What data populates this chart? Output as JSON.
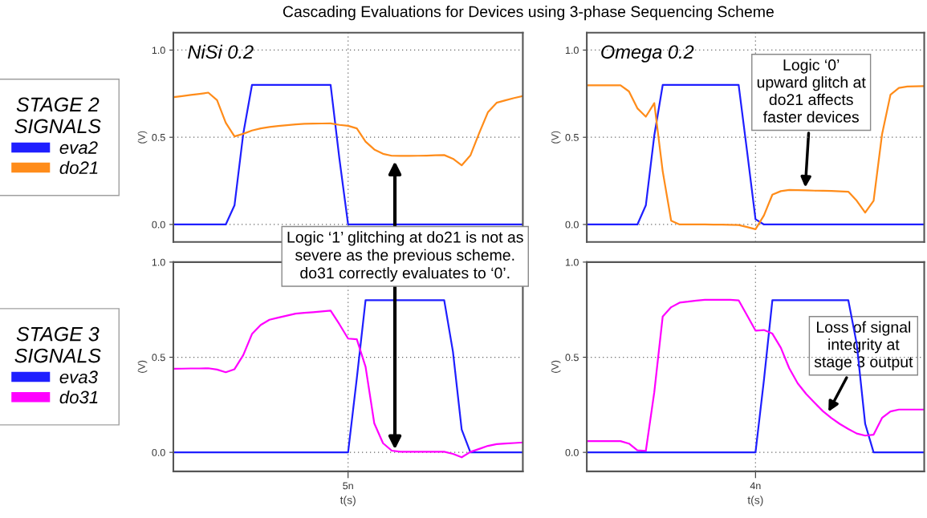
{
  "chart_data": [
    {
      "type": "line",
      "title": "Cascading Evaluations for Devices using 3-phase Sequencing Scheme",
      "ylabel": "(V)",
      "legend_title": "STAGE 2\nSIGNALS",
      "legend": "left",
      "grid": "y",
      "tick_labels": "y",
      "categories": [
        null,
        null,
        null,
        null,
        null,
        null,
        null,
        null,
        null,
        null,
        null,
        null,
        null,
        null,
        null,
        null,
        null,
        null,
        null,
        null,
        null,
        null,
        null,
        null,
        null,
        null,
        null,
        null,
        null,
        null,
        null,
        null,
        null,
        null,
        null,
        null,
        null,
        null,
        null,
        null,
        null
      ],
      "ylim": [
        -0.1,
        1.1
      ],
      "yticks": [
        {
          "value": 0,
          "label": "0.0"
        },
        {
          "value": 0.5,
          "label": "0.5"
        },
        {
          "value": 1,
          "label": "1.0"
        }
      ],
      "annotations": [
        "NiSi 0.2",
        "Logic ‘1’ glitching at do21 is not as\nsevere as the previous scheme.\ndo31 correctly evaluates to ‘0’."
      ],
      "series": [
        {
          "name": "eva2",
          "color": "#1f1fff",
          "values": [
            0,
            0,
            0,
            0,
            0,
            0,
            0,
            0.11,
            0.52,
            0.8,
            0.8,
            0.8,
            0.8,
            0.8,
            0.8,
            0.8,
            0.8,
            0.8,
            0.8,
            0.38,
            0,
            0,
            0,
            0,
            0,
            0,
            0,
            0,
            0,
            0,
            0,
            0,
            0,
            0,
            0,
            0,
            0,
            0,
            0,
            0,
            0
          ]
        },
        {
          "name": "do21",
          "color": "#ff8c1a",
          "values": [
            0.73,
            0.736,
            0.743,
            0.749,
            0.756,
            0.713,
            0.583,
            0.505,
            0.52,
            0.539,
            0.551,
            0.559,
            0.565,
            0.569,
            0.574,
            0.577,
            0.578,
            0.579,
            0.58,
            0.571,
            0.566,
            0.551,
            0.475,
            0.43,
            0.405,
            0.394,
            0.393,
            0.393,
            0.394,
            0.395,
            0.397,
            0.398,
            0.377,
            0.339,
            0.396,
            0.523,
            0.643,
            0.698,
            0.712,
            0.725,
            0.736
          ]
        }
      ]
    },
    {
      "type": "line",
      "ylabel": "(V)",
      "xlabel": "t(s)",
      "legend_title": "STAGE 3\nSIGNALS",
      "legend": "left",
      "grid": "y",
      "categories": [
        null,
        null,
        null,
        null,
        null,
        null,
        null,
        null,
        null,
        null,
        null,
        null,
        null,
        null,
        null,
        null,
        null,
        null,
        null,
        null,
        "5n",
        null,
        null,
        null,
        null,
        null,
        null,
        null,
        null,
        null,
        null,
        null,
        null,
        null,
        null,
        null,
        null,
        null,
        null,
        null,
        null
      ],
      "ylim": [
        -0.1,
        1.0
      ],
      "yticks": [
        {
          "value": 0,
          "label": "0.0"
        },
        {
          "value": 0.5,
          "label": "0.5"
        },
        {
          "value": 1,
          "label": "1.0"
        }
      ],
      "series": [
        {
          "name": "eva3",
          "color": "#1f1fff",
          "values": [
            0,
            0,
            0,
            0,
            0,
            0,
            0,
            0,
            0,
            0,
            0,
            0,
            0,
            0,
            0,
            0,
            0,
            0,
            0,
            0,
            0,
            0.39,
            0.8,
            0.8,
            0.8,
            0.8,
            0.8,
            0.8,
            0.8,
            0.8,
            0.8,
            0.8,
            0.53,
            0.12,
            0,
            0,
            0,
            0,
            0,
            0,
            0
          ]
        },
        {
          "name": "do31",
          "color": "#ff00ff",
          "values": [
            0.439,
            0.44,
            0.441,
            0.441,
            0.442,
            0.435,
            0.421,
            0.437,
            0.511,
            0.622,
            0.67,
            0.697,
            0.708,
            0.719,
            0.729,
            0.733,
            0.737,
            0.741,
            0.745,
            0.674,
            0.598,
            0.594,
            0.45,
            0.152,
            0.048,
            0.009,
            0.003,
            0.003,
            0.003,
            0.003,
            0.003,
            0.003,
            -0.008,
            -0.026,
            0.002,
            0.018,
            0.034,
            0.043,
            0.046,
            0.049,
            0.052
          ]
        }
      ]
    },
    {
      "type": "line",
      "ylabel": "(V)",
      "grid": "y",
      "tick_labels": "y",
      "categories": [
        null,
        null,
        null,
        null,
        null,
        null,
        null,
        null,
        null,
        null,
        null,
        null,
        null,
        null,
        null,
        null,
        null,
        null,
        null,
        null,
        null,
        null,
        null,
        null,
        null,
        null,
        null,
        null,
        null,
        null,
        null,
        null,
        null,
        null,
        null,
        null,
        null,
        null,
        null,
        null,
        null
      ],
      "ylim": [
        -0.1,
        1.1
      ],
      "yticks": [
        {
          "value": 0,
          "label": "0.0"
        },
        {
          "value": 0.5,
          "label": "0.5"
        },
        {
          "value": 1,
          "label": "1.0"
        }
      ],
      "annotations": [
        "Omega 0.2",
        "Logic ‘0’\nupward glitch at\ndo21 affects\nfaster devices"
      ],
      "series": [
        {
          "color": "#1f1fff",
          "values": [
            0,
            0,
            0,
            0,
            0,
            0,
            0,
            0.11,
            0.51,
            0.8,
            0.8,
            0.8,
            0.8,
            0.8,
            0.8,
            0.8,
            0.8,
            0.8,
            0.8,
            0.42,
            0.03,
            0,
            0,
            0,
            0,
            0,
            0,
            0,
            0,
            0,
            0,
            0,
            0,
            0,
            0,
            0,
            0,
            0,
            0,
            0,
            0
          ]
        },
        {
          "color": "#ff8c1a",
          "values": [
            0.798,
            0.798,
            0.798,
            0.798,
            0.798,
            0.763,
            0.666,
            0.618,
            0.696,
            0.305,
            0.022,
            0,
            0,
            0,
            0,
            -0.001,
            -0.001,
            -0.002,
            -0.003,
            -0.015,
            -0.027,
            0.052,
            0.171,
            0.191,
            0.198,
            0.197,
            0.196,
            0.194,
            0.193,
            0.192,
            0.19,
            0.188,
            0.136,
            0.068,
            0.136,
            0.517,
            0.744,
            0.783,
            0.791,
            0.792,
            0.793
          ]
        }
      ]
    },
    {
      "type": "line",
      "ylabel": "(V)",
      "xlabel": "t(s)",
      "grid": "y",
      "categories": [
        null,
        null,
        null,
        null,
        null,
        null,
        null,
        null,
        null,
        null,
        null,
        null,
        null,
        null,
        null,
        null,
        null,
        null,
        null,
        null,
        "4n",
        null,
        null,
        null,
        null,
        null,
        null,
        null,
        null,
        null,
        null,
        null,
        null,
        null,
        null,
        null,
        null,
        null,
        null,
        null,
        null
      ],
      "ylim": [
        -0.1,
        1.0
      ],
      "yticks": [
        {
          "value": 0,
          "label": "0.0"
        },
        {
          "value": 0.5,
          "label": "0.5"
        },
        {
          "value": 1,
          "label": "1.0"
        }
      ],
      "annotations": [
        "Loss of signal\nintegrity at\nstage 3 output"
      ],
      "series": [
        {
          "color": "#1f1fff",
          "values": [
            0,
            0,
            0,
            0,
            0,
            0,
            0,
            0,
            0,
            0,
            0,
            0,
            0,
            0,
            0,
            0,
            0,
            0,
            0,
            0,
            0,
            0.38,
            0.8,
            0.8,
            0.8,
            0.8,
            0.8,
            0.8,
            0.8,
            0.8,
            0.8,
            0.8,
            0.57,
            0.15,
            0,
            0,
            0,
            0,
            0,
            0,
            0
          ]
        },
        {
          "color": "#ff00ff",
          "values": [
            0.059,
            0.059,
            0.059,
            0.059,
            0.059,
            0.046,
            0.011,
            0.008,
            0.316,
            0.714,
            0.763,
            0.787,
            0.792,
            0.798,
            0.802,
            0.802,
            0.802,
            0.802,
            0.799,
            0.72,
            0.64,
            0.643,
            0.624,
            0.55,
            0.442,
            0.363,
            0.307,
            0.261,
            0.216,
            0.18,
            0.149,
            0.123,
            0.099,
            0.088,
            0.093,
            0.181,
            0.215,
            0.225,
            0.225,
            0.225,
            0.225
          ]
        }
      ]
    }
  ]
}
